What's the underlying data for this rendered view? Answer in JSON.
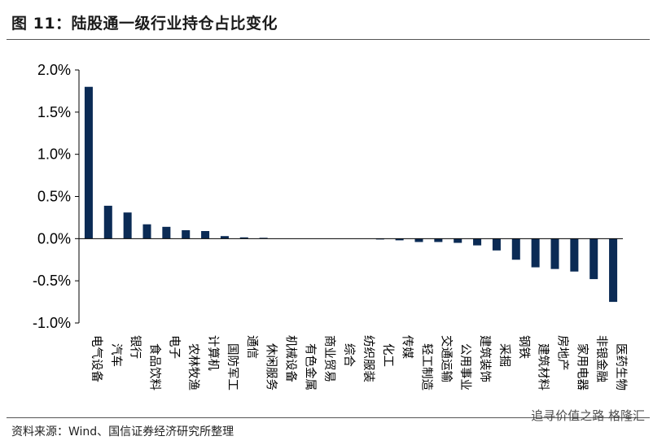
{
  "header": {
    "title": "图 11：陆股通一级行业持仓占比变化"
  },
  "footer": {
    "source": "资料来源：Wind、国信证券经济研究所整理",
    "watermark": "追寻价值之路  格隆汇"
  },
  "chart_data": {
    "type": "bar",
    "title": "陆股通一级行业持仓占比变化",
    "xlabel": "",
    "ylabel": "",
    "ylim": [
      -1.0,
      2.0
    ],
    "yticks": [
      "2.0%",
      "1.5%",
      "1.0%",
      "0.5%",
      "0.0%",
      "-0.5%",
      "-1.0%"
    ],
    "y_unit": "%",
    "grid": false,
    "legend": "none",
    "bar_color": "#0b2b55",
    "categories": [
      "电气设备",
      "汽车",
      "银行",
      "食品饮料",
      "电子",
      "农林牧渔",
      "计算机",
      "国防军工",
      "通信",
      "休闲服务",
      "机械设备",
      "有色金属",
      "商业贸易",
      "综合",
      "纺织服装",
      "化工",
      "传媒",
      "轻工制造",
      "交通运输",
      "公用事业",
      "建筑装饰",
      "采掘",
      "钢铁",
      "建筑材料",
      "房地产",
      "家用电器",
      "非银金融",
      "医药生物"
    ],
    "values": [
      1.8,
      0.39,
      0.31,
      0.17,
      0.14,
      0.1,
      0.09,
      0.03,
      0.015,
      0.01,
      0.0,
      0.0,
      0.0,
      0.0,
      0.0,
      -0.01,
      -0.02,
      -0.04,
      -0.04,
      -0.05,
      -0.08,
      -0.14,
      -0.25,
      -0.34,
      -0.36,
      -0.39,
      -0.48,
      -0.75
    ]
  }
}
